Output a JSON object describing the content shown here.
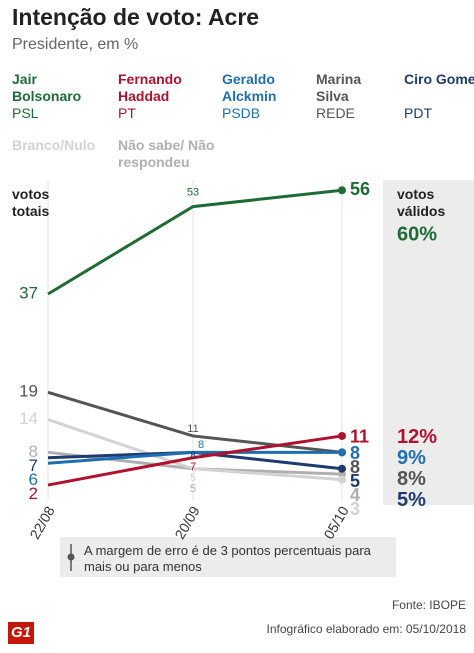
{
  "chart_data": {
    "type": "line",
    "title": "Intenção de voto: Acre",
    "subtitle": "Presidente, em %",
    "left_label": "votos totais",
    "right_label": "votos válidos",
    "categories": [
      "22/08",
      "20/09",
      "05/10"
    ],
    "series": [
      {
        "name": "Jair Bolsonaro",
        "party": "PSL",
        "color": "#1e6b35",
        "values": [
          37,
          53,
          56
        ],
        "valid": 60,
        "valid_label": "60%"
      },
      {
        "name": "Fernando Haddad",
        "party": "PT",
        "color": "#b0112c",
        "values": [
          2,
          7,
          11
        ],
        "valid": 12,
        "valid_label": "12%"
      },
      {
        "name": "Geraldo Alckmin",
        "party": "PSDB",
        "color": "#1f6fb0",
        "values": [
          6,
          8,
          8
        ],
        "valid": 9,
        "valid_label": "9%"
      },
      {
        "name": "Marina Silva",
        "party": "REDE",
        "color": "#555555",
        "values": [
          19,
          11,
          8
        ],
        "valid": 8,
        "valid_label": "8%"
      },
      {
        "name": "Ciro Gomes",
        "party": "PDT",
        "color": "#1d3b70",
        "values": [
          7,
          8,
          5
        ],
        "valid": 5,
        "valid_label": "5%"
      },
      {
        "name": "Branco/Nulo",
        "color": "#d3d3d3",
        "values": [
          14,
          5,
          3
        ]
      },
      {
        "name": "Não sabe/ Não respondeu",
        "color": "#b0b0b0",
        "values": [
          8,
          5,
          4
        ]
      }
    ],
    "note": "A margem de erro é de 3 pontos percentuais para mais ou para menos",
    "source": "Fonte: IBOPE",
    "credit": "Infográfico elaborado em: 05/10/2018",
    "logo": "G1"
  }
}
